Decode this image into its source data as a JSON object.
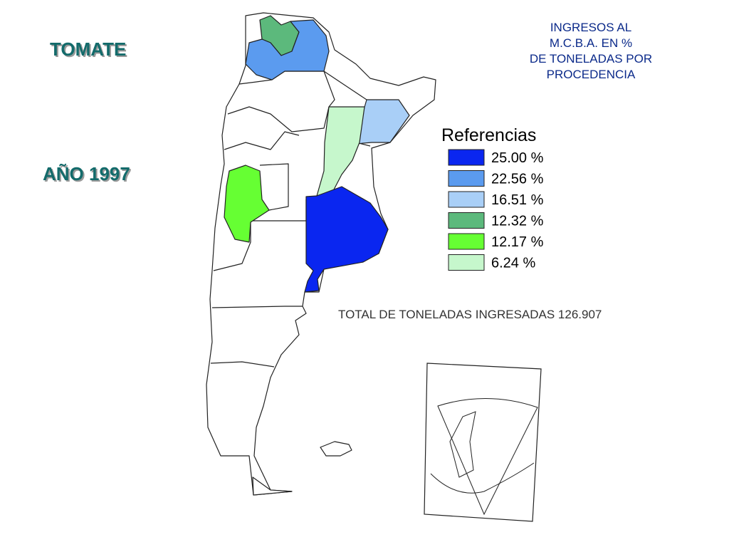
{
  "product": "TOMATE",
  "year": "AÑO 1997",
  "title_lines": [
    "INGRESOS AL",
    "M.C.B.A. EN %",
    "DE TONELADAS POR",
    "PROCEDENCIA"
  ],
  "legend": {
    "title": "Referencias",
    "items": [
      {
        "label": "25.00 %",
        "color": "#0a26f0"
      },
      {
        "label": "22.56 %",
        "color": "#5b9bef"
      },
      {
        "label": "16.51 %",
        "color": "#a9cff7"
      },
      {
        "label": "12.32 %",
        "color": "#5cb97c"
      },
      {
        "label": "12.17 %",
        "color": "#66ff33"
      },
      {
        "label": "6.24 %",
        "color": "#c6f7cc"
      }
    ]
  },
  "total": "TOTAL DE TONELADAS INGRESADAS 126.907"
}
